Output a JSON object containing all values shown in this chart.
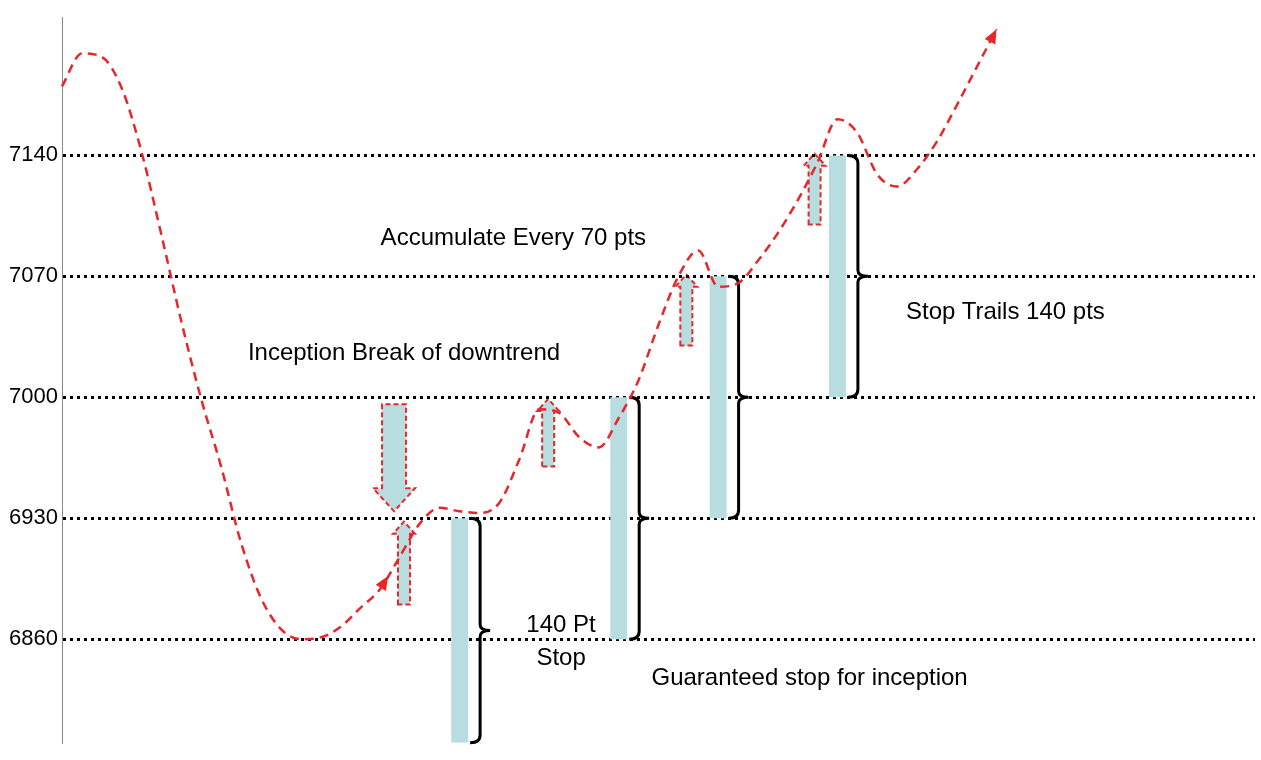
{
  "chart_data": {
    "type": "line",
    "categories": [
      null,
      null,
      null,
      null,
      null,
      null,
      null,
      null,
      null,
      null,
      null,
      null,
      null,
      null,
      null,
      null,
      null,
      null,
      null,
      null,
      null,
      null,
      null,
      null,
      null,
      null,
      null,
      null,
      null,
      null,
      null,
      null,
      null,
      null,
      null,
      null,
      null,
      null,
      null,
      null,
      null,
      null,
      null,
      null,
      null,
      null,
      null,
      null,
      null,
      null,
      null,
      null,
      null,
      null,
      null,
      null,
      null,
      null,
      null,
      null,
      null
    ],
    "series": [
      {
        "color": "#e8262a",
        "line_style": "dashed",
        "marker": "none",
        "values": [
          7180,
          7199,
          7197,
          7179,
          7142,
          7094,
          7044,
          6999,
          6960,
          6916,
          6884,
          6866,
          6860,
          6861,
          6867,
          6878,
          6889,
          6908,
          6927,
          6936,
          6934,
          6933,
          6939,
          6964,
          6993,
          6991,
          6977,
          6971,
          6988,
          7010,
          7042,
          7070,
          7085,
          7064,
          7066,
          7079,
          7095,
          7114,
          7136,
          7161,
          7153,
          7129,
          7122,
          7132,
          7148,
          7169,
          7191,
          7213,
          null,
          null,
          null,
          null,
          null,
          null,
          null,
          null,
          null,
          null,
          null,
          null,
          null
        ]
      },
      {
        "type": "bar",
        "color": "#b7dde0",
        "base": [
          null,
          null,
          null,
          null,
          null,
          null,
          null,
          null,
          null,
          null,
          null,
          null,
          null,
          null,
          null,
          null,
          null,
          null,
          null,
          null,
          6800,
          null,
          null,
          null,
          null,
          null,
          null,
          null,
          6860,
          null,
          null,
          null,
          null,
          6930,
          null,
          null,
          null,
          null,
          null,
          7000,
          null,
          null,
          null,
          null,
          null,
          null,
          null,
          null,
          null,
          null,
          null,
          null,
          null,
          null,
          null,
          null,
          null,
          null,
          null,
          null,
          null
        ],
        "values": [
          null,
          null,
          null,
          null,
          null,
          null,
          null,
          null,
          null,
          null,
          null,
          null,
          null,
          null,
          null,
          null,
          null,
          null,
          null,
          null,
          130,
          null,
          null,
          null,
          null,
          null,
          null,
          null,
          140,
          null,
          null,
          null,
          null,
          140,
          null,
          null,
          null,
          null,
          null,
          140,
          null,
          null,
          null,
          null,
          null,
          null,
          null,
          null,
          null,
          null,
          null,
          null,
          null,
          null,
          null,
          null,
          null,
          null,
          null,
          null,
          null
        ]
      }
    ],
    "ylim": [
      6800,
      7220
    ],
    "yticks": [
      6860,
      6930,
      7000,
      7070,
      7140
    ],
    "grid": "y",
    "legend": false,
    "tick_labels": "y",
    "annotations": [
      "Accumulate Every 70 pts",
      "Inception Break of downtrend",
      "Stop Trails 140 pts",
      "140 Pt Stop",
      "Guaranteed stop for inception"
    ]
  }
}
